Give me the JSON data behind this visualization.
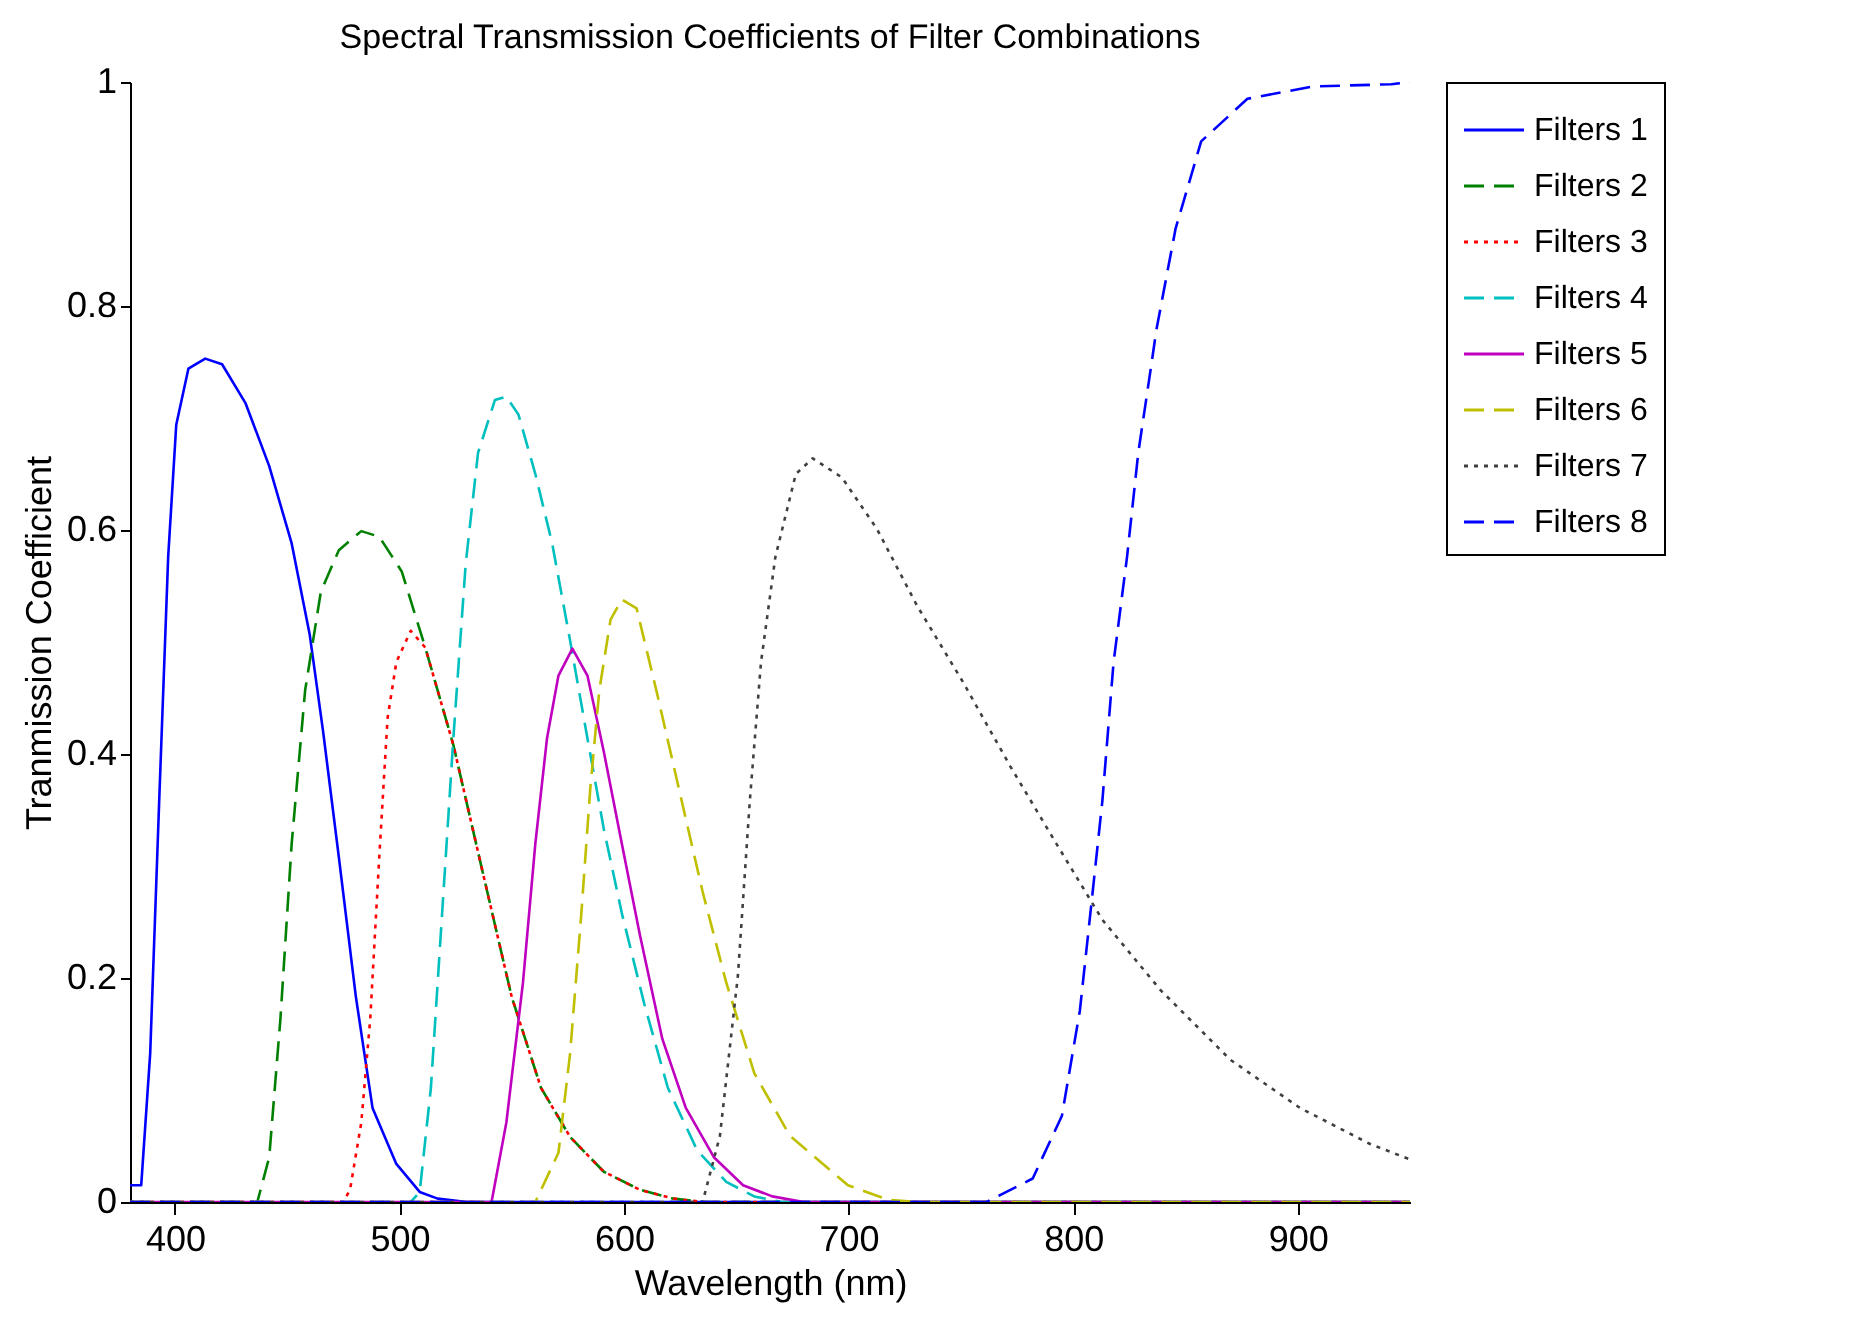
{
  "chart_data": {
    "type": "line",
    "title": "Spectral Transmission Coefficients of Filter Combinations",
    "xlabel": "Wavelength (nm)",
    "ylabel": "Tranmission Coefficient",
    "xlim": [
      380,
      950
    ],
    "ylim": [
      0,
      1
    ],
    "xticks": [
      400,
      500,
      600,
      700,
      800,
      900
    ],
    "yticks": [
      0,
      0.2,
      0.4,
      0.6,
      0.8,
      1
    ],
    "grid": false,
    "legend": "right",
    "marker": "none",
    "series": [
      {
        "name": "Filters 1",
        "color": "#0000ff",
        "line_style": "solid",
        "x": [
          380,
          385,
          389,
          393,
          397,
          400.6,
          406,
          413.5,
          421,
          431.5,
          442,
          452,
          460,
          466,
          473,
          480.6,
          488,
          498.6,
          509,
          517,
          530,
          950
        ],
        "values": [
          0.015,
          0.015,
          0.133,
          0.358,
          0.576,
          0.694,
          0.744,
          0.753,
          0.748,
          0.713,
          0.657,
          0.588,
          0.507,
          0.42,
          0.308,
          0.183,
          0.084,
          0.034,
          0.009,
          0.003,
          0,
          0
        ]
      },
      {
        "name": "Filters 2",
        "color": "#008000",
        "line_style": "dashed",
        "x": [
          380,
          436.7,
          442,
          447,
          452,
          458,
          465,
          473,
          483,
          491,
          501,
          511.5,
          524,
          537,
          550,
          563,
          576,
          591,
          607,
          622,
          635,
          950
        ],
        "values": [
          0,
          0,
          0.04,
          0.164,
          0.32,
          0.457,
          0.545,
          0.582,
          0.599,
          0.594,
          0.563,
          0.495,
          0.408,
          0.295,
          0.183,
          0.102,
          0.058,
          0.027,
          0.011,
          0.003,
          0,
          0
        ]
      },
      {
        "name": "Filters 3",
        "color": "#ff0000",
        "line_style": "dotted",
        "x": [
          380,
          475,
          478,
          483,
          487,
          491,
          494.7,
          498.6,
          505,
          511.5,
          524,
          537,
          550,
          563,
          576,
          591,
          607,
          622,
          635,
          950
        ],
        "values": [
          0,
          0,
          0.011,
          0.071,
          0.164,
          0.308,
          0.432,
          0.482,
          0.51,
          0.495,
          0.408,
          0.295,
          0.183,
          0.102,
          0.058,
          0.027,
          0.011,
          0.003,
          0,
          0
        ]
      },
      {
        "name": "Filters 4",
        "color": "#00bfbf",
        "line_style": "dashed",
        "x": [
          380,
          505,
          509,
          514,
          519,
          524,
          529.5,
          535,
          542.5,
          547.6,
          553,
          560.5,
          568,
          576,
          583.7,
          591,
          599,
          609,
          619.5,
          632.6,
          645.5,
          658,
          670,
          950
        ],
        "values": [
          0,
          0,
          0.009,
          0.102,
          0.258,
          0.414,
          0.57,
          0.669,
          0.716,
          0.719,
          0.703,
          0.65,
          0.588,
          0.501,
          0.414,
          0.333,
          0.258,
          0.177,
          0.102,
          0.046,
          0.018,
          0.005,
          0,
          0
        ]
      },
      {
        "name": "Filters 5",
        "color": "#bf00bf",
        "line_style": "solid",
        "x": [
          380,
          541,
          547.6,
          555,
          560.5,
          565.7,
          570.8,
          577,
          583.7,
          591,
          599,
          607,
          617,
          627.5,
          640,
          653,
          666,
          680,
          950
        ],
        "values": [
          0,
          0,
          0.071,
          0.196,
          0.32,
          0.414,
          0.47,
          0.494,
          0.47,
          0.402,
          0.32,
          0.239,
          0.146,
          0.084,
          0.04,
          0.015,
          0.005,
          0,
          0
        ]
      },
      {
        "name": "Filters 6",
        "color": "#bfbf00",
        "line_style": "dashed",
        "x": [
          380,
          560.5,
          570.8,
          576,
          581,
          585,
          589,
          594,
          599,
          605.6,
          614.6,
          625,
          635,
          645.5,
          658,
          673.9,
          699.7,
          717.5,
          730,
          950
        ],
        "values": [
          0,
          0,
          0.044,
          0.133,
          0.258,
          0.37,
          0.457,
          0.52,
          0.538,
          0.53,
          0.455,
          0.364,
          0.277,
          0.196,
          0.115,
          0.059,
          0.015,
          0.002,
          0,
          0
        ]
      },
      {
        "name": "Filters 7",
        "color": "#404040",
        "line_style": "dotted",
        "x": [
          380,
          635,
          642.7,
          650.7,
          656,
          661,
          667.4,
          676.5,
          684,
          697,
          712.6,
          730.6,
          751,
          772,
          792.5,
          813,
          839,
          870,
          901,
          932,
          950
        ],
        "values": [
          0,
          0,
          0.059,
          0.202,
          0.358,
          0.482,
          0.576,
          0.65,
          0.664,
          0.647,
          0.601,
          0.532,
          0.464,
          0.389,
          0.32,
          0.252,
          0.189,
          0.127,
          0.084,
          0.052,
          0.038
        ]
      },
      {
        "name": "Filters 8",
        "color": "#0000ff",
        "line_style": "dashed",
        "x": [
          380,
          761.5,
          782,
          795,
          803,
          808,
          813,
          818,
          824,
          829,
          835,
          837,
          845.6,
          857,
          877.6,
          906.7,
          941.7,
          950
        ],
        "values": [
          0,
          0,
          0.021,
          0.077,
          0.171,
          0.264,
          0.358,
          0.482,
          0.576,
          0.669,
          0.75,
          0.778,
          0.869,
          0.947,
          0.985,
          0.996,
          0.998,
          1
        ]
      }
    ]
  }
}
